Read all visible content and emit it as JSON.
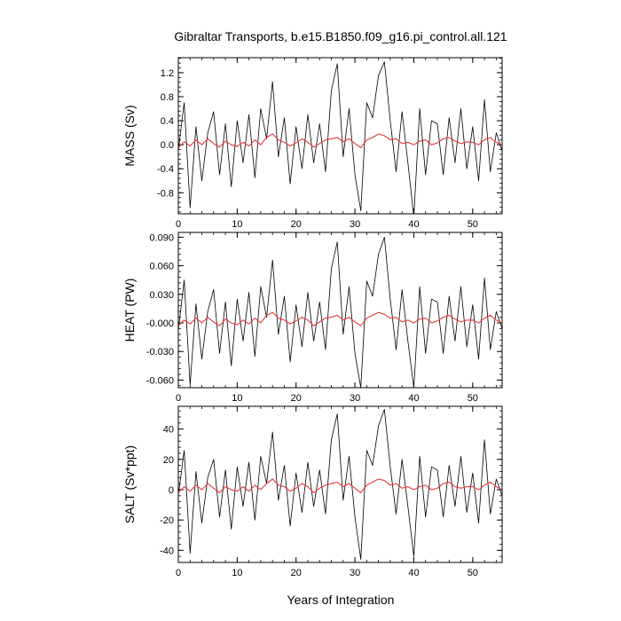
{
  "title": "Gibraltar Transports, b.e15.B1850.f09_g16.pi_control.all.121",
  "xlabel": "Years of Integration",
  "colors": {
    "raw": "#000000",
    "smooth": "#e8383d"
  },
  "chart_data": [
    {
      "type": "line",
      "ylabel": "MASS (Sv)",
      "xlim": [
        0,
        55
      ],
      "ylim": [
        -1.15,
        1.45
      ],
      "xticks": [
        0,
        10,
        20,
        30,
        40,
        50
      ],
      "xtick_labels": [
        "0",
        "10",
        "20",
        "30",
        "40",
        "50"
      ],
      "yticks": [
        -0.8,
        -0.4,
        0.0,
        0.4,
        0.8,
        1.2
      ],
      "ytick_labels": [
        "-0.8",
        "-0.4",
        "0.0",
        "0.4",
        "0.8",
        "1.2"
      ],
      "series": [
        {
          "style": "monthly",
          "x": [
            0,
            1,
            2,
            3,
            4,
            5,
            6,
            7,
            8,
            9,
            10,
            11,
            12,
            13,
            14,
            15,
            16,
            17,
            18,
            19,
            20,
            21,
            22,
            23,
            24,
            25,
            26,
            27,
            28,
            29,
            30,
            31,
            32,
            33,
            34,
            35,
            36,
            37,
            38,
            39,
            40,
            41,
            42,
            43,
            44,
            45,
            46,
            47,
            48,
            49,
            50,
            51,
            52,
            53,
            54,
            55
          ],
          "y": [
            -0.1,
            0.7,
            -1.05,
            0.3,
            -0.6,
            0.2,
            0.55,
            -0.5,
            0.35,
            -0.7,
            0.4,
            -0.3,
            0.5,
            -0.55,
            0.6,
            0.1,
            1.05,
            -0.2,
            0.45,
            -0.65,
            0.3,
            -0.4,
            0.5,
            -0.3,
            0.35,
            -0.45,
            0.9,
            1.35,
            -0.2,
            0.6,
            -0.5,
            -1.1,
            0.7,
            0.45,
            1.15,
            1.38,
            0.4,
            -0.45,
            0.55,
            -0.3,
            -1.2,
            0.6,
            -0.5,
            0.4,
            0.35,
            -0.5,
            0.45,
            -0.3,
            0.6,
            -0.4,
            0.3,
            -0.6,
            0.75,
            -0.45,
            0.2,
            -0.1
          ]
        },
        {
          "style": "smoothed",
          "x": [
            0,
            1,
            2,
            3,
            4,
            5,
            6,
            7,
            8,
            9,
            10,
            11,
            12,
            13,
            14,
            15,
            16,
            17,
            18,
            19,
            20,
            21,
            22,
            23,
            24,
            25,
            26,
            27,
            28,
            29,
            30,
            31,
            32,
            33,
            34,
            35,
            36,
            37,
            38,
            39,
            40,
            41,
            42,
            43,
            44,
            45,
            46,
            47,
            48,
            49,
            50,
            51,
            52,
            53,
            54,
            55
          ],
          "y": [
            -0.05,
            0.05,
            -0.02,
            0.08,
            0.0,
            0.1,
            0.02,
            -0.04,
            0.06,
            0.0,
            -0.03,
            0.04,
            -0.02,
            0.08,
            0.0,
            0.12,
            0.18,
            0.08,
            0.04,
            -0.02,
            0.03,
            0.1,
            0.04,
            -0.04,
            0.02,
            0.08,
            0.1,
            0.12,
            0.05,
            0.1,
            0.02,
            -0.05,
            0.08,
            0.12,
            0.18,
            0.15,
            0.08,
            0.1,
            0.02,
            0.04,
            0.0,
            0.06,
            0.08,
            0.0,
            0.03,
            0.1,
            0.12,
            0.06,
            0.02,
            0.05,
            0.04,
            0.0,
            0.08,
            0.12,
            0.04,
            0.0
          ]
        }
      ]
    },
    {
      "type": "line",
      "ylabel": "HEAT (PW)",
      "xlim": [
        0,
        55
      ],
      "ylim": [
        -0.068,
        0.095
      ],
      "xticks": [
        0,
        10,
        20,
        30,
        40,
        50
      ],
      "xtick_labels": [
        "0",
        "10",
        "20",
        "30",
        "40",
        "50"
      ],
      "yticks": [
        -0.06,
        -0.03,
        0.0,
        0.03,
        0.06,
        0.09
      ],
      "ytick_labels": [
        "-0.060",
        "-0.030",
        "-0.000",
        "0.030",
        "0.060",
        "0.090"
      ],
      "series": [
        {
          "style": "monthly",
          "x": [
            0,
            1,
            2,
            3,
            4,
            5,
            6,
            7,
            8,
            9,
            10,
            11,
            12,
            13,
            14,
            15,
            16,
            17,
            18,
            19,
            20,
            21,
            22,
            23,
            24,
            25,
            26,
            27,
            28,
            29,
            30,
            31,
            32,
            33,
            34,
            35,
            36,
            37,
            38,
            39,
            40,
            41,
            42,
            43,
            44,
            45,
            46,
            47,
            48,
            49,
            50,
            51,
            52,
            53,
            54,
            55
          ],
          "y": [
            -0.008,
            0.045,
            -0.065,
            0.02,
            -0.038,
            0.012,
            0.035,
            -0.032,
            0.022,
            -0.045,
            0.025,
            -0.019,
            0.032,
            -0.035,
            0.038,
            0.006,
            0.066,
            -0.012,
            0.028,
            -0.041,
            0.019,
            -0.025,
            0.032,
            -0.019,
            0.022,
            -0.028,
            0.057,
            0.085,
            -0.012,
            0.038,
            -0.032,
            -0.068,
            0.044,
            0.028,
            0.072,
            0.09,
            0.025,
            -0.028,
            0.035,
            -0.019,
            -0.068,
            0.038,
            -0.032,
            0.025,
            0.022,
            -0.032,
            0.028,
            -0.019,
            0.038,
            -0.025,
            0.019,
            -0.038,
            0.047,
            -0.028,
            0.012,
            -0.006
          ]
        },
        {
          "style": "smoothed",
          "x": [
            0,
            1,
            2,
            3,
            4,
            5,
            6,
            7,
            8,
            9,
            10,
            11,
            12,
            13,
            14,
            15,
            16,
            17,
            18,
            19,
            20,
            21,
            22,
            23,
            24,
            25,
            26,
            27,
            28,
            29,
            30,
            31,
            32,
            33,
            34,
            35,
            36,
            37,
            38,
            39,
            40,
            41,
            42,
            43,
            44,
            45,
            46,
            47,
            48,
            49,
            50,
            51,
            52,
            53,
            54,
            55
          ],
          "y": [
            -0.003,
            0.003,
            -0.001,
            0.005,
            0.0,
            0.006,
            0.001,
            -0.003,
            0.004,
            0.0,
            -0.002,
            0.003,
            -0.001,
            0.005,
            0.0,
            0.008,
            0.011,
            0.005,
            0.003,
            -0.001,
            0.002,
            0.006,
            0.003,
            -0.003,
            0.001,
            0.005,
            0.006,
            0.008,
            0.003,
            0.006,
            0.001,
            -0.003,
            0.005,
            0.008,
            0.011,
            0.009,
            0.005,
            0.006,
            0.001,
            0.003,
            0.0,
            0.004,
            0.005,
            0.0,
            0.002,
            0.006,
            0.008,
            0.004,
            0.001,
            0.003,
            0.003,
            0.0,
            0.005,
            0.008,
            0.003,
            0.0
          ]
        }
      ]
    },
    {
      "type": "line",
      "ylabel": "SALT (Sv*ppt)",
      "xlim": [
        0,
        55
      ],
      "ylim": [
        -48,
        55
      ],
      "xticks": [
        0,
        10,
        20,
        30,
        40,
        50
      ],
      "xtick_labels": [
        "0",
        "10",
        "20",
        "30",
        "40",
        "50"
      ],
      "yticks": [
        -40,
        -20,
        0,
        20,
        40
      ],
      "ytick_labels": [
        "-40",
        "-20",
        "0",
        "20",
        "40"
      ],
      "series": [
        {
          "style": "monthly",
          "x": [
            0,
            1,
            2,
            3,
            4,
            5,
            6,
            7,
            8,
            9,
            10,
            11,
            12,
            13,
            14,
            15,
            16,
            17,
            18,
            19,
            20,
            21,
            22,
            23,
            24,
            25,
            26,
            27,
            28,
            29,
            30,
            31,
            32,
            33,
            34,
            35,
            36,
            37,
            38,
            39,
            40,
            41,
            42,
            43,
            44,
            45,
            46,
            47,
            48,
            49,
            50,
            51,
            52,
            53,
            54,
            55
          ],
          "y": [
            -4,
            26,
            -42,
            12,
            -22,
            8,
            20,
            -18,
            13,
            -26,
            15,
            -11,
            18,
            -20,
            22,
            4,
            38,
            -7,
            16,
            -24,
            11,
            -15,
            18,
            -11,
            13,
            -16,
            33,
            50,
            -7,
            22,
            -18,
            -46,
            26,
            16,
            42,
            53,
            15,
            -16,
            20,
            -11,
            -44,
            22,
            -18,
            15,
            13,
            -18,
            16,
            -11,
            22,
            -15,
            11,
            -22,
            33,
            -16,
            7,
            -4
          ]
        },
        {
          "style": "smoothed",
          "x": [
            0,
            1,
            2,
            3,
            4,
            5,
            6,
            7,
            8,
            9,
            10,
            11,
            12,
            13,
            14,
            15,
            16,
            17,
            18,
            19,
            20,
            21,
            22,
            23,
            24,
            25,
            26,
            27,
            28,
            29,
            30,
            31,
            32,
            33,
            34,
            35,
            36,
            37,
            38,
            39,
            40,
            41,
            42,
            43,
            44,
            45,
            46,
            47,
            48,
            49,
            50,
            51,
            52,
            53,
            54,
            55
          ],
          "y": [
            -2,
            2,
            -1,
            3,
            0,
            4,
            1,
            -2,
            2,
            0,
            -1,
            2,
            -1,
            3,
            0,
            4,
            7,
            3,
            2,
            -1,
            1,
            4,
            2,
            -2,
            1,
            3,
            4,
            5,
            2,
            4,
            1,
            -2,
            3,
            5,
            7,
            6,
            3,
            4,
            1,
            2,
            0,
            2,
            3,
            0,
            1,
            4,
            5,
            2,
            1,
            2,
            2,
            0,
            3,
            5,
            2,
            0
          ]
        }
      ]
    }
  ]
}
